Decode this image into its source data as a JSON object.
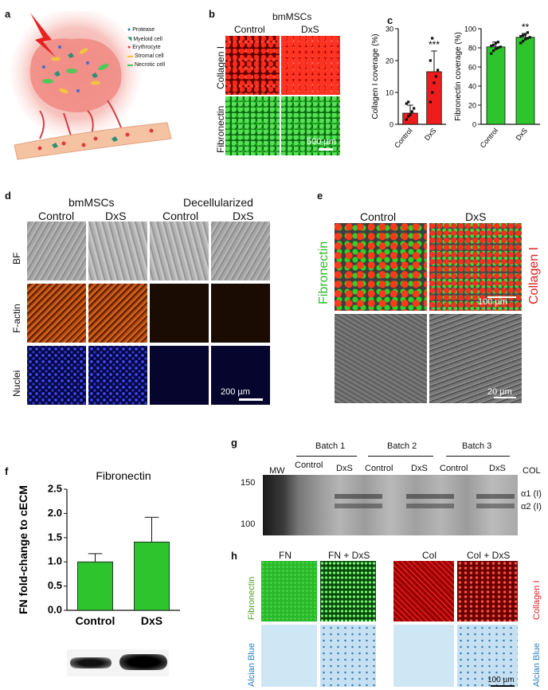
{
  "panels": {
    "a": {
      "letter": "a",
      "legend": [
        "Protease",
        "Myeloid cell",
        "Erythrocyte",
        "Stromal cell",
        "Necrotic cell"
      ],
      "legend_icons": [
        "protease-dot-icon",
        "myeloid-cell-icon",
        "erythrocyte-icon",
        "stromal-cell-icon",
        "necrotic-cell-icon"
      ]
    },
    "b": {
      "letter": "b",
      "title": "bmMSCs",
      "cols": [
        "Control",
        "DxS"
      ],
      "rows": [
        "Collagen I",
        "Fibronectin"
      ],
      "scale": "500 µm"
    },
    "c": {
      "letter": "c"
    },
    "d": {
      "letter": "d",
      "group1": "bmMSCs",
      "group2": "Decellularized",
      "cols": [
        "Control",
        "DxS",
        "Control",
        "DxS"
      ],
      "rows": [
        "BF",
        "F-actin",
        "Nuclei"
      ],
      "scale": "200 µm"
    },
    "e": {
      "letter": "e",
      "cols": [
        "Control",
        "DxS"
      ],
      "left_label": "Fibronectin",
      "right_label": "Collagen I",
      "scale_top": "100 µm",
      "scale_bottom": "20 µm"
    },
    "f": {
      "letter": "f"
    },
    "g": {
      "letter": "g",
      "batches": [
        "Batch 1",
        "Batch 2",
        "Batch 3"
      ],
      "lanes": [
        "Control",
        "DxS",
        "Control",
        "DxS",
        "Control",
        "DxS"
      ],
      "mw": "MW",
      "col": "COL",
      "markers": [
        "150",
        "100"
      ],
      "bands": [
        "α1 (I)",
        "α2 (I)"
      ]
    },
    "h": {
      "letter": "h",
      "cols": [
        "FN",
        "FN + DxS",
        "Col",
        "Col + DxS"
      ],
      "left_labels": [
        "Fibronectin",
        "Alcian Blue"
      ],
      "right_labels": [
        "Collagen I",
        "Alcian Blue"
      ],
      "scale": "100 µm"
    }
  },
  "chart_data": [
    {
      "id": "c-collagen",
      "type": "bar",
      "categories": [
        "Control",
        "DxS"
      ],
      "values": [
        3.5,
        16.5
      ],
      "errors": [
        2.5,
        6.5
      ],
      "ylabel": "Collagen I coverage (%)",
      "ylim": [
        0,
        30
      ],
      "yticks": [
        0,
        10,
        20,
        30
      ],
      "significance": [
        "",
        "***"
      ],
      "bar_color": "#ee1c1c",
      "points": [
        [
          1.5,
          2.5,
          3,
          4,
          5,
          6.5,
          7
        ],
        [
          7,
          10,
          13,
          15,
          17,
          20,
          27
        ]
      ]
    },
    {
      "id": "c-fibronectin",
      "type": "bar",
      "categories": [
        "Control",
        "DxS"
      ],
      "values": [
        81,
        91
      ],
      "errors": [
        5,
        4
      ],
      "ylabel": "Fibronectin coverage (%)",
      "ylim": [
        0,
        100
      ],
      "yticks": [
        0,
        20,
        40,
        60,
        80,
        100
      ],
      "significance": [
        "",
        "**"
      ],
      "bar_color": "#2ec42e",
      "points": [
        [
          74,
          77,
          79,
          80,
          81,
          82,
          83,
          85,
          86
        ],
        [
          85,
          87,
          89,
          90,
          91,
          92,
          93,
          94,
          96
        ]
      ]
    },
    {
      "id": "f-fn",
      "type": "bar",
      "title": "Fibronectin",
      "categories": [
        "Control",
        "DxS"
      ],
      "values": [
        1.0,
        1.41
      ],
      "errors": [
        0.17,
        0.51
      ],
      "ylabel": "FN fold-change to cECM",
      "ylim": [
        0,
        2.5
      ],
      "yticks": [
        "0.0",
        "0.5",
        "1.0",
        "1.5",
        "2.0",
        "2.5"
      ],
      "bar_color": "#2ec42e"
    }
  ]
}
